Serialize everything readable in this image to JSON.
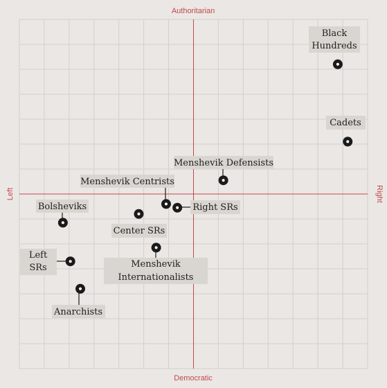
{
  "colors": {
    "background": "#ebe7e4",
    "grid": "#d3cfcc",
    "axis": "#c0484c",
    "axis_label": "#c0484c",
    "label_box": "#d9d6d1",
    "marker_fill": "#1a1a1a",
    "marker_center": "#ffffff"
  },
  "chart_data": {
    "type": "scatter",
    "title": "",
    "axes": {
      "top_label": "Authoritarian",
      "bottom_label": "Democratic",
      "left_label": "Left",
      "right_label": "Right"
    },
    "xlim": [
      -7,
      7
    ],
    "ylim": [
      -7,
      7
    ],
    "grid": true,
    "points": [
      {
        "label": "Black Hundreds",
        "x": 5.8,
        "y": 5.2
      },
      {
        "label": "Cadets",
        "x": 6.2,
        "y": 2.1
      },
      {
        "label": "Menshevik Defensists",
        "x": 1.2,
        "y": 0.55
      },
      {
        "label": "Menshevik Centrists",
        "x": -1.1,
        "y": -0.4
      },
      {
        "label": "Right SRs",
        "x": -0.65,
        "y": -0.55
      },
      {
        "label": "Bolsheviks",
        "x": -5.25,
        "y": -1.15
      },
      {
        "label": "Center SRs",
        "x": -2.2,
        "y": -0.8
      },
      {
        "label": "Menshevik Internationalists",
        "x": -1.5,
        "y": -2.15
      },
      {
        "label": "Left SRs",
        "x": -4.95,
        "y": -2.7
      },
      {
        "label": "Anarchists",
        "x": -4.55,
        "y": -3.8
      }
    ]
  }
}
